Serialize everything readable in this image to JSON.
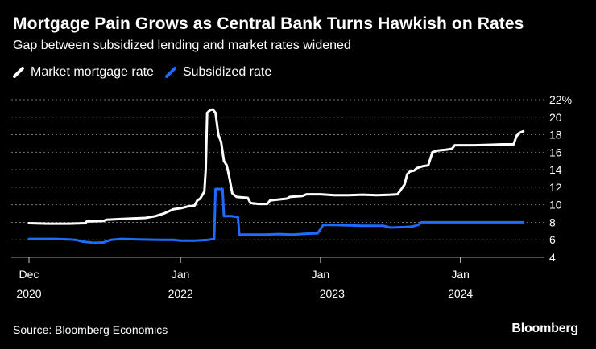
{
  "header": {
    "title": "Mortgage Pain Grows as Central Bank Turns Hawkish on Rates",
    "subtitle": "Gap between subsidized lending and market rates widened"
  },
  "footer": {
    "source": "Source: Bloomberg Economics",
    "brand": "Bloomberg"
  },
  "colors": {
    "background": "#000000",
    "market": "#ffffff",
    "subsidized": "#1f6bff",
    "grid": "#777777",
    "text": "#ffffff"
  },
  "chart_data": {
    "type": "line",
    "title": "Mortgage Pain Grows as Central Bank Turns Hawkish on Rates",
    "subtitle": "Gap between subsidized lending and market rates widened",
    "xlabel": "",
    "ylabel": "",
    "x_range": [
      2020.917,
      2024.5
    ],
    "ylim": [
      4,
      22
    ],
    "y_ticks": [
      4,
      6,
      8,
      10,
      12,
      14,
      16,
      18,
      20,
      22
    ],
    "y_tick_labels": [
      "4",
      "6",
      "8",
      "10",
      "12",
      "14",
      "16",
      "18",
      "20",
      "22%"
    ],
    "x_ticks": [
      {
        "x": 2020.917,
        "line1": "Dec",
        "line2": "2020"
      },
      {
        "x": 2022.0,
        "line1": "Jan",
        "line2": "2022"
      },
      {
        "x": 2023.0,
        "line1": "Jan",
        "line2": ""
      },
      {
        "x": 2023.083,
        "line1": "",
        "line2": "2023"
      },
      {
        "x": 2024.0,
        "line1": "Jan",
        "line2": "2024"
      }
    ],
    "grid": true,
    "legend_position": "top-left",
    "series": [
      {
        "name": "Market mortgage rate",
        "color": "#ffffff",
        "points": [
          [
            2020.917,
            7.9
          ],
          [
            2021.05,
            7.85
          ],
          [
            2021.2,
            7.85
          ],
          [
            2021.32,
            7.9
          ],
          [
            2021.33,
            8.1
          ],
          [
            2021.45,
            8.15
          ],
          [
            2021.47,
            8.3
          ],
          [
            2021.6,
            8.4
          ],
          [
            2021.75,
            8.5
          ],
          [
            2021.82,
            8.7
          ],
          [
            2021.88,
            9.0
          ],
          [
            2021.95,
            9.5
          ],
          [
            2022.0,
            9.6
          ],
          [
            2022.05,
            9.8
          ],
          [
            2022.1,
            9.9
          ],
          [
            2022.12,
            10.5
          ],
          [
            2022.14,
            10.7
          ],
          [
            2022.17,
            11.5
          ],
          [
            2022.18,
            14.0
          ],
          [
            2022.19,
            20.5
          ],
          [
            2022.21,
            20.8
          ],
          [
            2022.23,
            20.9
          ],
          [
            2022.25,
            20.5
          ],
          [
            2022.27,
            18.0
          ],
          [
            2022.29,
            17.2
          ],
          [
            2022.31,
            15.0
          ],
          [
            2022.33,
            14.5
          ],
          [
            2022.35,
            13.0
          ],
          [
            2022.37,
            11.3
          ],
          [
            2022.4,
            10.9
          ],
          [
            2022.48,
            10.8
          ],
          [
            2022.5,
            10.2
          ],
          [
            2022.56,
            10.1
          ],
          [
            2022.62,
            10.1
          ],
          [
            2022.64,
            10.5
          ],
          [
            2022.7,
            10.6
          ],
          [
            2022.76,
            10.7
          ],
          [
            2022.78,
            10.9
          ],
          [
            2022.87,
            11.0
          ],
          [
            2022.9,
            11.2
          ],
          [
            2023.0,
            11.2
          ],
          [
            2023.1,
            11.1
          ],
          [
            2023.2,
            11.1
          ],
          [
            2023.3,
            11.15
          ],
          [
            2023.4,
            11.1
          ],
          [
            2023.5,
            11.15
          ],
          [
            2023.55,
            11.2
          ],
          [
            2023.57,
            11.6
          ],
          [
            2023.6,
            12.3
          ],
          [
            2023.62,
            13.5
          ],
          [
            2023.64,
            13.8
          ],
          [
            2023.67,
            13.9
          ],
          [
            2023.69,
            14.2
          ],
          [
            2023.73,
            14.4
          ],
          [
            2023.77,
            14.5
          ],
          [
            2023.8,
            16.0
          ],
          [
            2023.84,
            16.2
          ],
          [
            2023.9,
            16.3
          ],
          [
            2023.94,
            16.4
          ],
          [
            2023.96,
            16.8
          ],
          [
            2024.0,
            16.8
          ],
          [
            2024.1,
            16.8
          ],
          [
            2024.2,
            16.85
          ],
          [
            2024.3,
            16.9
          ],
          [
            2024.38,
            16.9
          ],
          [
            2024.4,
            17.8
          ],
          [
            2024.42,
            18.2
          ],
          [
            2024.45,
            18.4
          ]
        ]
      },
      {
        "name": "Subsidized rate",
        "color": "#1f6bff",
        "points": [
          [
            2020.917,
            6.1
          ],
          [
            2021.1,
            6.1
          ],
          [
            2021.2,
            6.05
          ],
          [
            2021.25,
            6.0
          ],
          [
            2021.3,
            5.8
          ],
          [
            2021.38,
            5.65
          ],
          [
            2021.45,
            5.7
          ],
          [
            2021.5,
            6.0
          ],
          [
            2021.58,
            6.1
          ],
          [
            2021.7,
            6.05
          ],
          [
            2021.85,
            6.0
          ],
          [
            2021.95,
            6.0
          ],
          [
            2022.0,
            5.9
          ],
          [
            2022.1,
            5.9
          ],
          [
            2022.15,
            5.95
          ],
          [
            2022.2,
            6.0
          ],
          [
            2022.24,
            6.1
          ],
          [
            2022.25,
            11.8
          ],
          [
            2022.3,
            11.8
          ],
          [
            2022.31,
            8.7
          ],
          [
            2022.36,
            8.7
          ],
          [
            2022.41,
            8.6
          ],
          [
            2022.42,
            6.6
          ],
          [
            2022.6,
            6.6
          ],
          [
            2022.7,
            6.65
          ],
          [
            2022.8,
            6.6
          ],
          [
            2022.9,
            6.7
          ],
          [
            2022.98,
            6.75
          ],
          [
            2023.02,
            7.7
          ],
          [
            2023.1,
            7.7
          ],
          [
            2023.2,
            7.65
          ],
          [
            2023.3,
            7.6
          ],
          [
            2023.45,
            7.6
          ],
          [
            2023.5,
            7.4
          ],
          [
            2023.6,
            7.45
          ],
          [
            2023.65,
            7.5
          ],
          [
            2023.7,
            7.7
          ],
          [
            2023.72,
            8.0
          ],
          [
            2023.8,
            8.0
          ],
          [
            2024.0,
            8.0
          ],
          [
            2024.2,
            8.0
          ],
          [
            2024.45,
            8.0
          ]
        ]
      }
    ]
  }
}
